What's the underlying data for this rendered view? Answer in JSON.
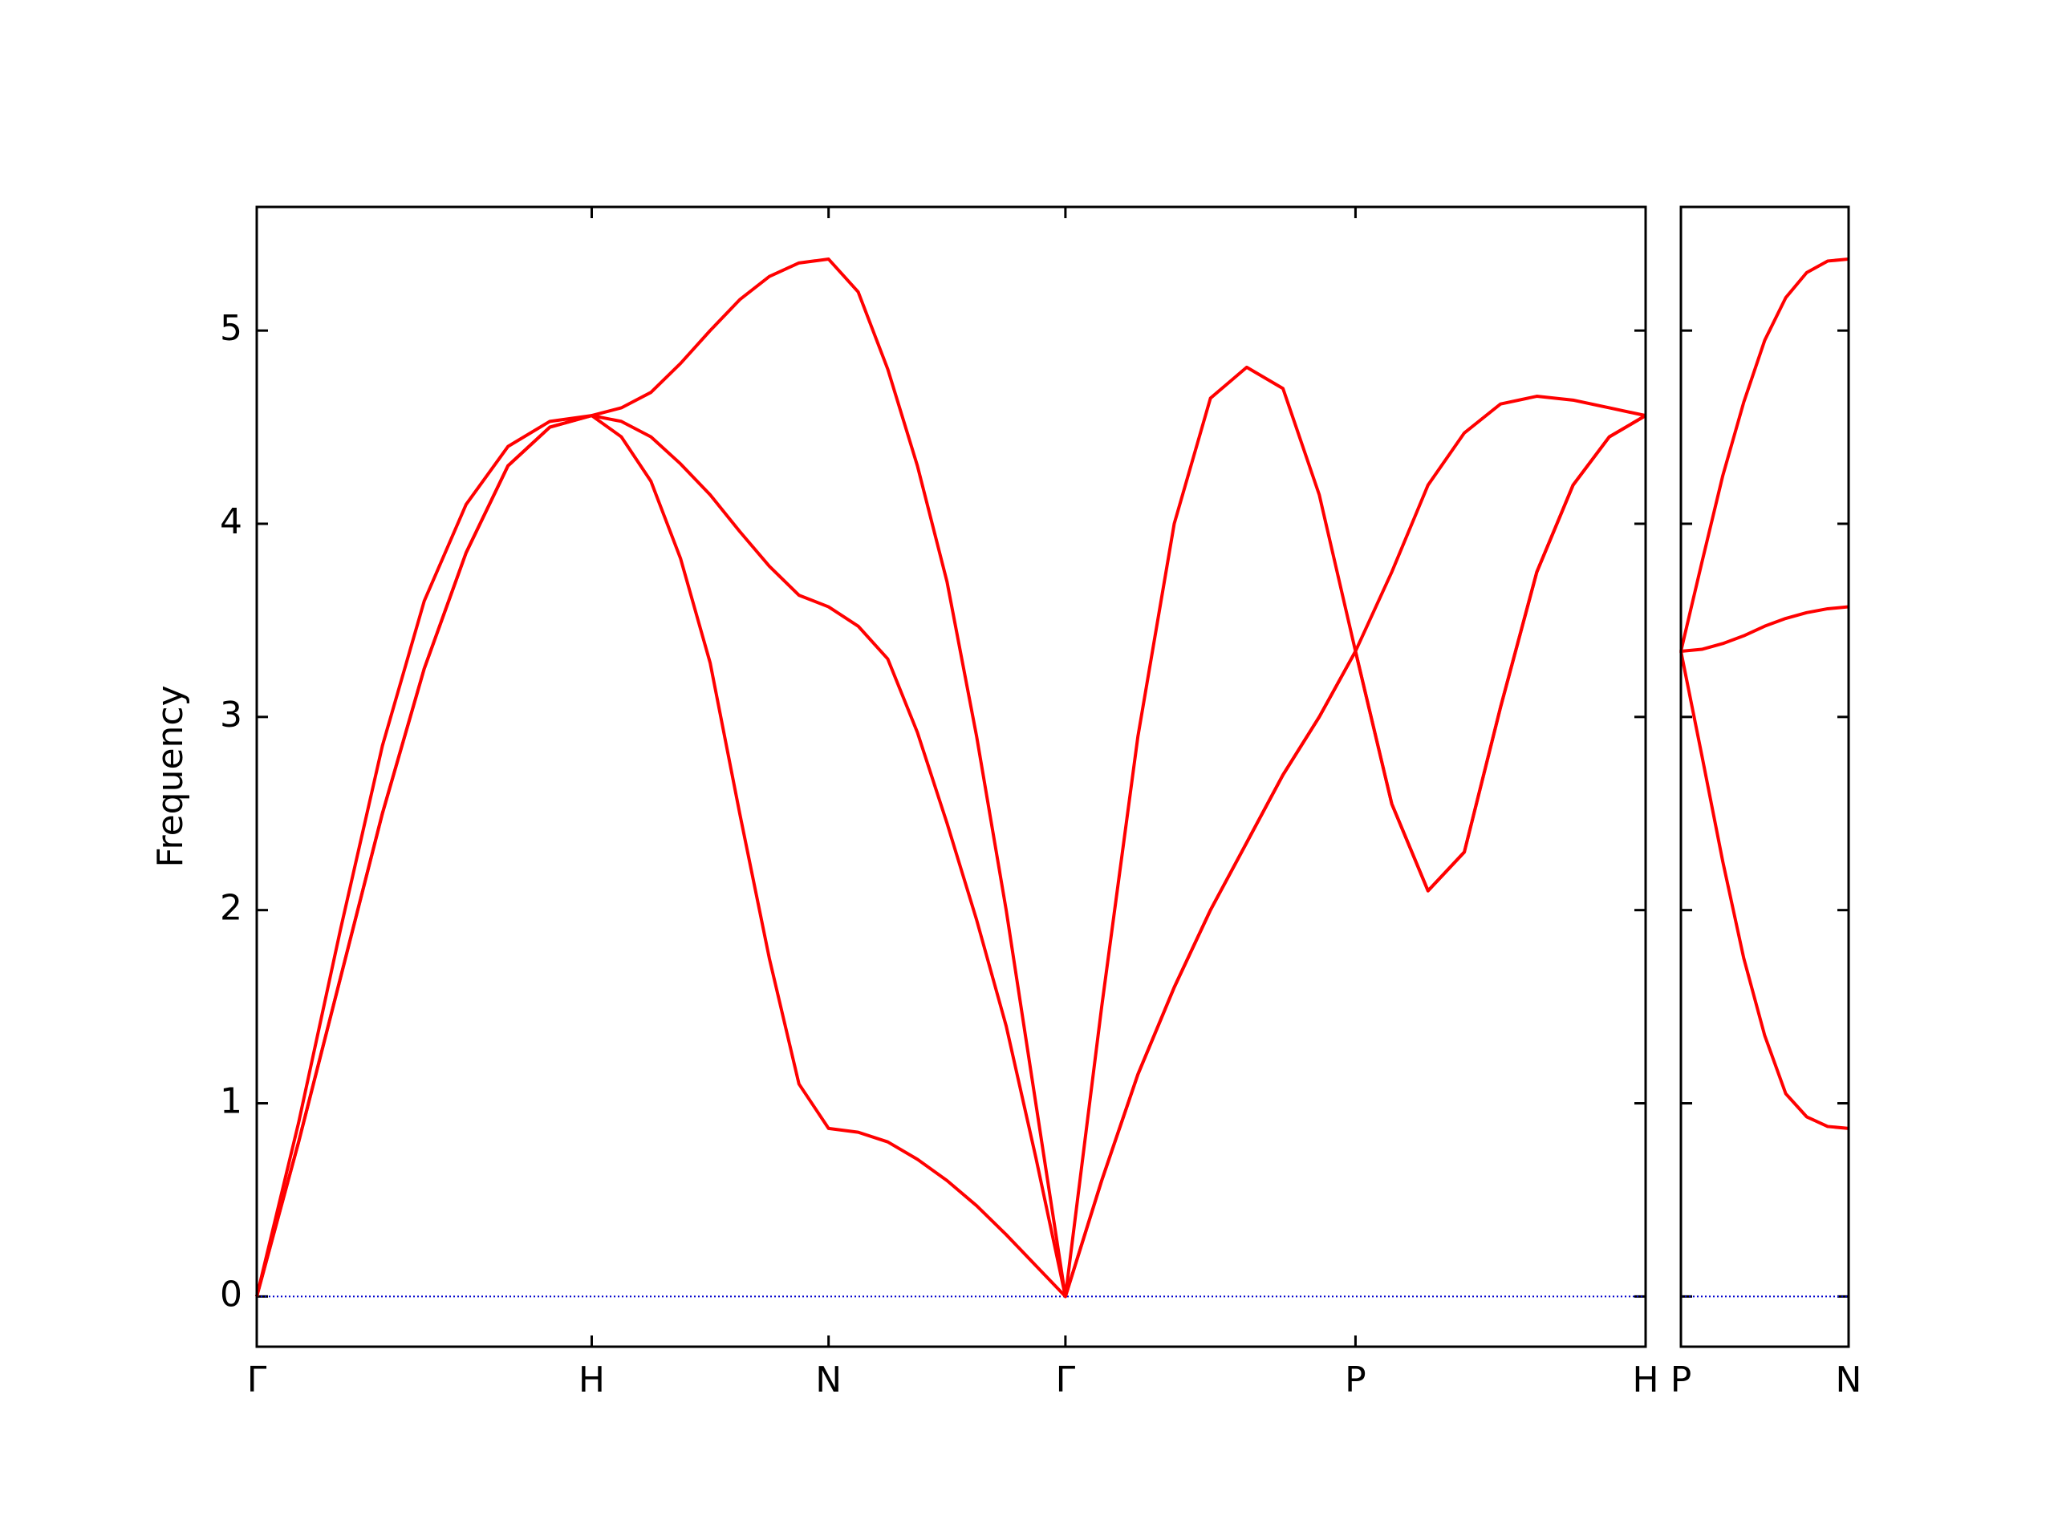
{
  "chart_data": [
    {
      "type": "line",
      "ylabel": "Frequency",
      "x": [
        0,
        0.125,
        0.25,
        0.375,
        0.5,
        0.625,
        0.75,
        0.875,
        1,
        1.0884,
        1.1768,
        1.2652,
        1.3536,
        1.4419,
        1.5303,
        1.6187,
        1.7071,
        1.7955,
        1.8839,
        1.9723,
        2.0607,
        2.149,
        2.2374,
        2.3258,
        2.4142,
        2.5225,
        2.6307,
        2.739,
        2.8472,
        2.9555,
        3.0637,
        3.172,
        3.2802,
        3.3885,
        3.4967,
        3.605,
        3.7132,
        3.8215,
        3.9297,
        4.038,
        4.1463
      ],
      "xlim": [
        0,
        4.1463
      ],
      "xticks": [
        {
          "value": 0,
          "label": "Γ"
        },
        {
          "value": 1,
          "label": "H"
        },
        {
          "value": 1.7071,
          "label": "N"
        },
        {
          "value": 2.4142,
          "label": "Γ"
        },
        {
          "value": 3.2802,
          "label": "P"
        },
        {
          "value": 4.1463,
          "label": "H"
        }
      ],
      "ylim": [
        -0.26,
        5.64
      ],
      "yticks": [
        0,
        1,
        2,
        3,
        4,
        5
      ],
      "ytick_labels": true,
      "zero_line_color": "#0000cc",
      "series": [
        {
          "color": "#ff0000",
          "values": [
            0,
            0.8,
            1.65,
            2.5,
            3.25,
            3.85,
            4.3,
            4.5,
            4.56,
            4.45,
            4.22,
            3.82,
            3.28,
            2.5,
            1.75,
            1.1,
            0.87,
            0.85,
            0.8,
            0.71,
            0.6,
            0.47,
            0.32,
            0.16,
            0,
            0.6,
            1.15,
            1.6,
            2.0,
            2.35,
            2.7,
            3.0,
            3.34,
            2.55,
            2.1,
            2.3,
            3.05,
            3.75,
            4.2,
            4.45,
            4.56
          ]
        },
        {
          "color": "#ff0000",
          "values": [
            0,
            0.8,
            1.65,
            2.5,
            3.25,
            3.85,
            4.3,
            4.5,
            4.56,
            4.53,
            4.45,
            4.31,
            4.15,
            3.96,
            3.78,
            3.63,
            3.57,
            3.47,
            3.3,
            2.92,
            2.45,
            1.95,
            1.4,
            0.72,
            0,
            0.6,
            1.15,
            1.6,
            2.0,
            2.35,
            2.7,
            3.0,
            3.34,
            2.55,
            2.1,
            2.3,
            3.05,
            3.75,
            4.2,
            4.45,
            4.56
          ]
        },
        {
          "color": "#ff0000",
          "values": [
            0,
            0.9,
            1.9,
            2.85,
            3.6,
            4.1,
            4.4,
            4.53,
            4.56,
            4.6,
            4.68,
            4.83,
            5.0,
            5.16,
            5.28,
            5.35,
            5.37,
            5.2,
            4.8,
            4.3,
            3.7,
            2.9,
            2.0,
            1.0,
            0,
            1.5,
            2.9,
            4.0,
            4.65,
            4.81,
            4.7,
            4.15,
            3.34,
            3.75,
            4.2,
            4.47,
            4.62,
            4.66,
            4.64,
            4.6,
            4.56
          ]
        }
      ]
    },
    {
      "type": "line",
      "x": [
        0,
        0.0625,
        0.125,
        0.1875,
        0.25,
        0.3125,
        0.375,
        0.4375,
        0.5
      ],
      "xlim": [
        0,
        0.5
      ],
      "xticks": [
        {
          "value": 0,
          "label": "P"
        },
        {
          "value": 0.5,
          "label": "N"
        }
      ],
      "ylim": [
        -0.26,
        5.64
      ],
      "yticks": [
        0,
        1,
        2,
        3,
        4,
        5
      ],
      "ytick_labels": false,
      "zero_line_color": "#0000cc",
      "series": [
        {
          "color": "#ff0000",
          "values": [
            3.34,
            2.8,
            2.25,
            1.75,
            1.35,
            1.05,
            0.93,
            0.88,
            0.87
          ]
        },
        {
          "color": "#ff0000",
          "values": [
            3.34,
            3.35,
            3.38,
            3.42,
            3.47,
            3.51,
            3.54,
            3.56,
            3.57
          ]
        },
        {
          "color": "#ff0000",
          "values": [
            3.34,
            3.8,
            4.25,
            4.63,
            4.95,
            5.17,
            5.3,
            5.36,
            5.37
          ]
        }
      ]
    }
  ]
}
